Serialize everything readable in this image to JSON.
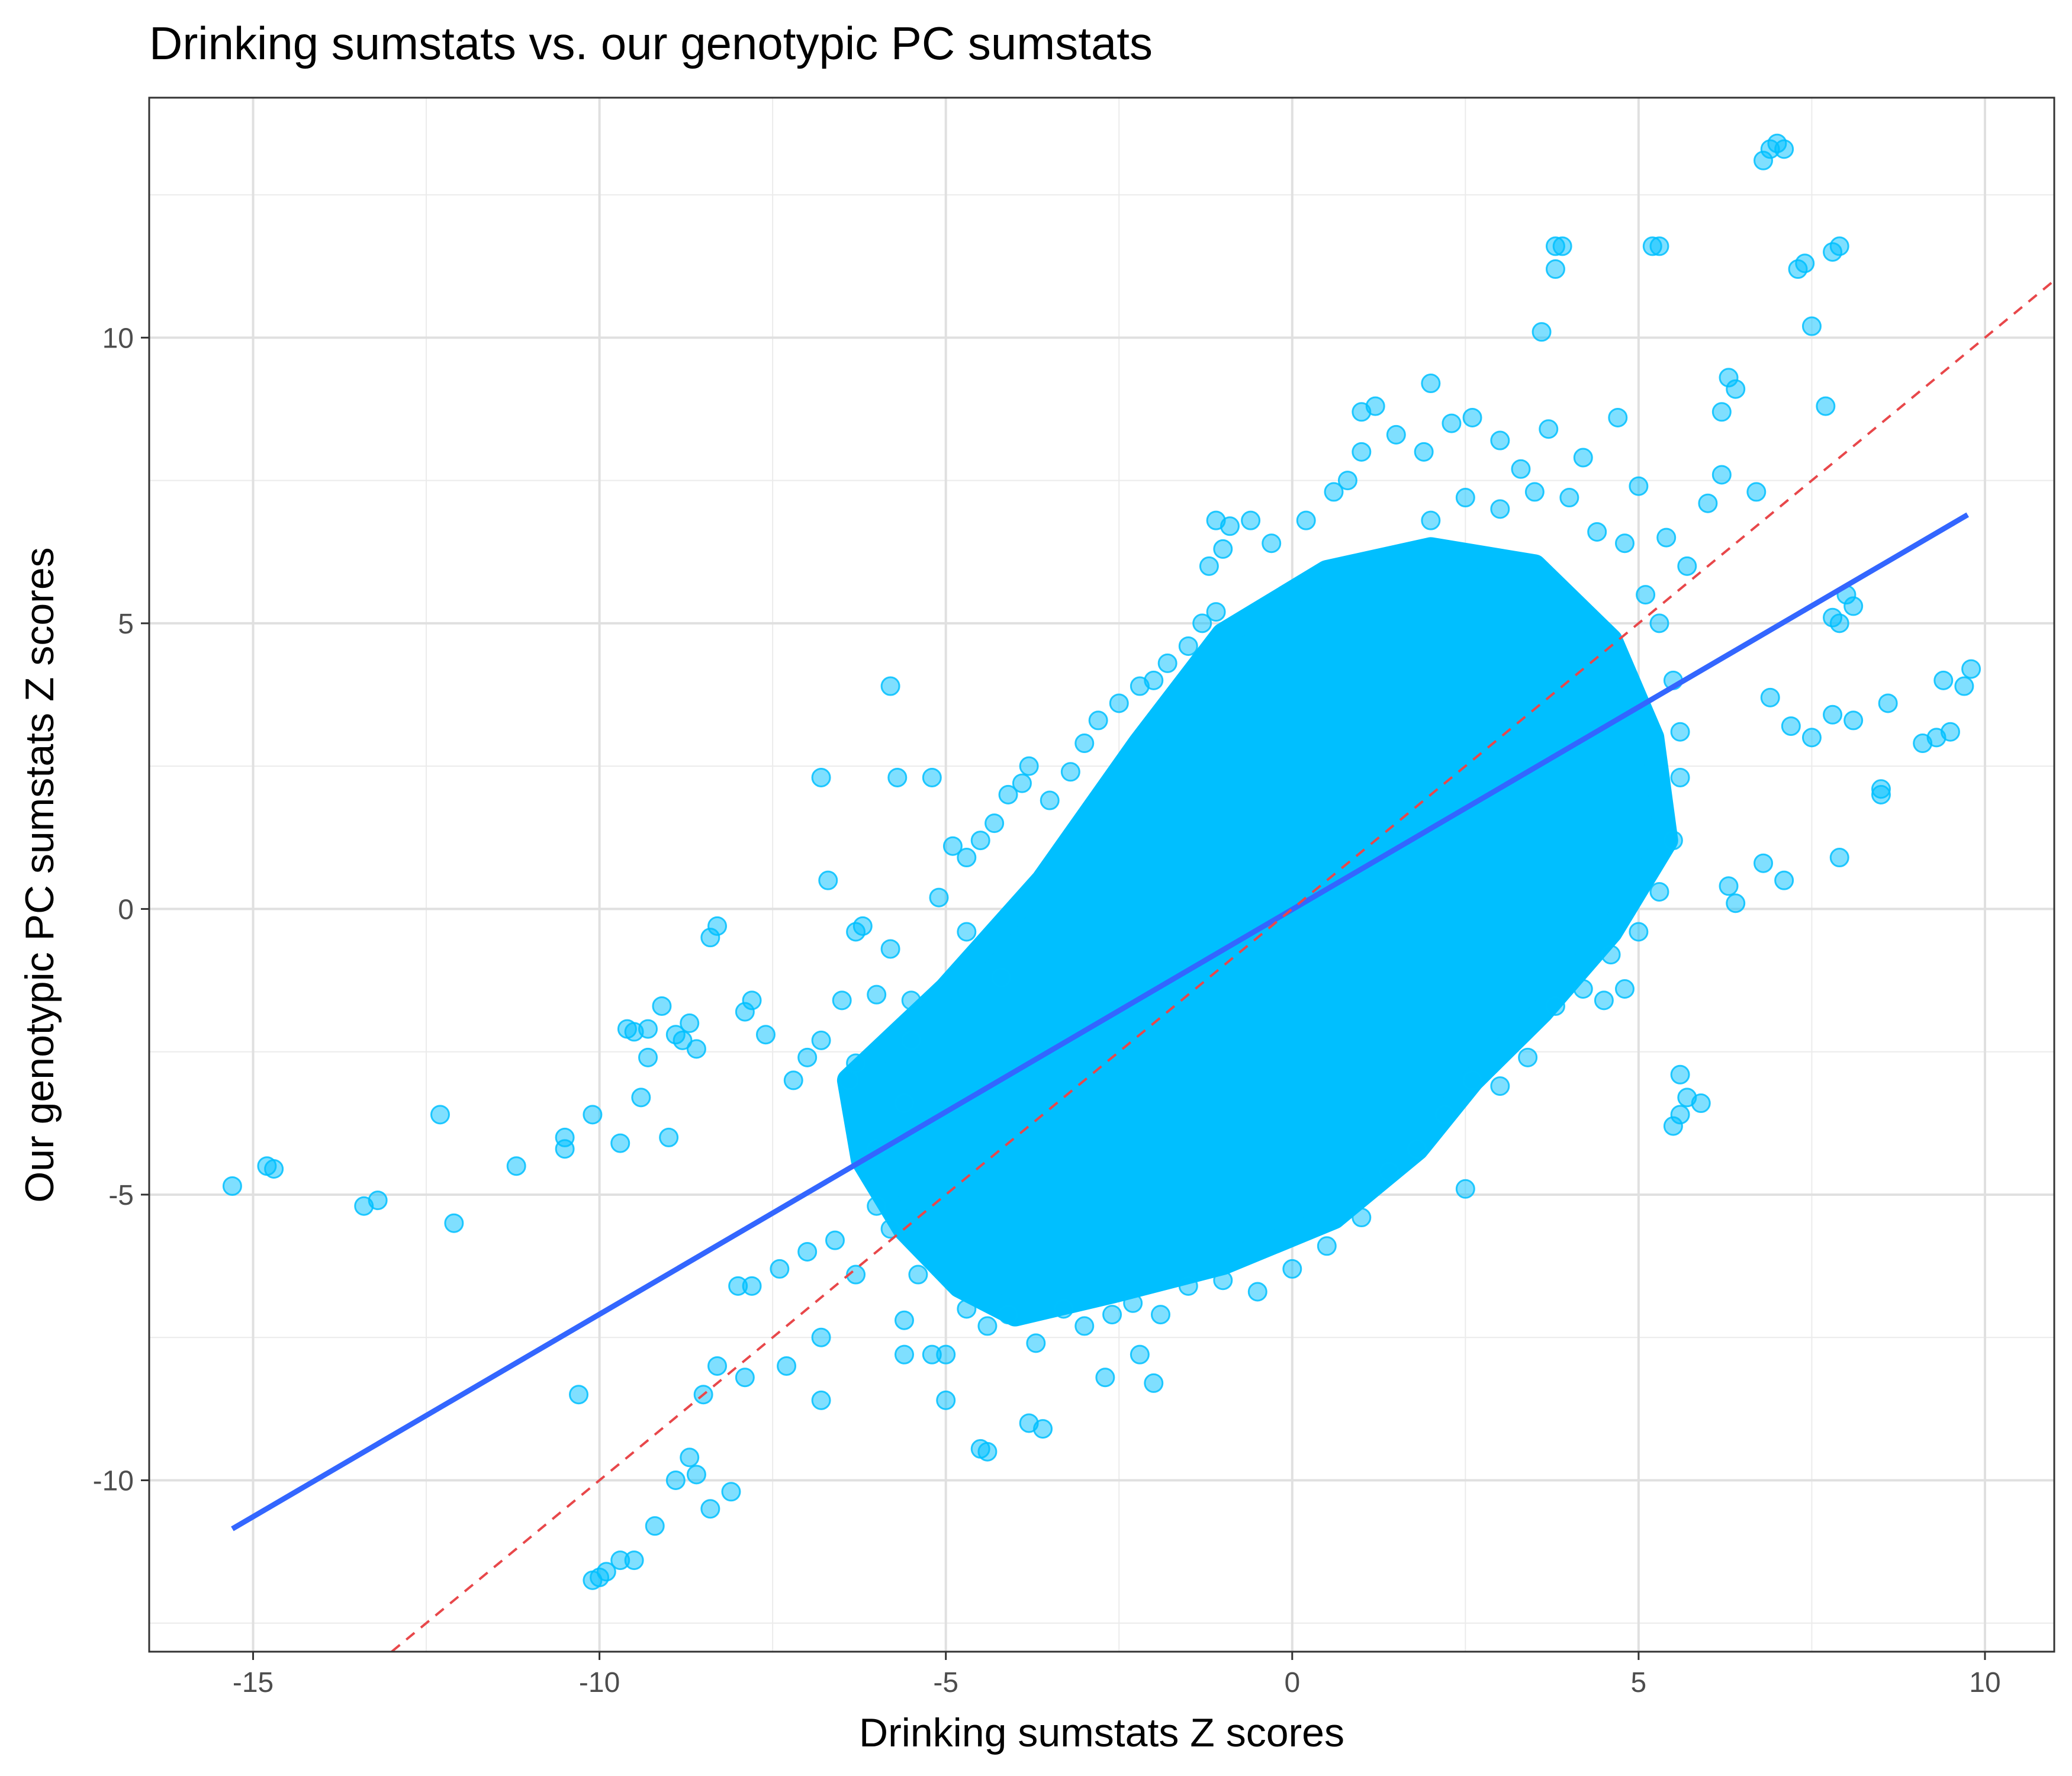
{
  "chart_data": {
    "type": "scatter",
    "title": "Drinking sumstats vs. our genotypic PC sumstats",
    "xlabel": "Drinking sumstats Z scores",
    "ylabel": "Our genotypic PC sumstats Z scores",
    "xlim": [
      -16.5,
      11.0
    ],
    "ylim": [
      -13.0,
      14.2
    ],
    "x_ticks": [
      -15,
      -10,
      -5,
      0,
      5,
      10
    ],
    "y_ticks": [
      -10,
      -5,
      0,
      5,
      10
    ],
    "grid": true,
    "point_color": "#00BFFF",
    "series": [
      {
        "type": "scatter",
        "points": [
          [
            -15.3,
            -4.85
          ],
          [
            -14.8,
            -4.5
          ],
          [
            -14.7,
            -4.55
          ],
          [
            -13.4,
            -5.2
          ],
          [
            -13.2,
            -5.1
          ],
          [
            -12.3,
            -3.6
          ],
          [
            -12.1,
            -5.5
          ],
          [
            -11.2,
            -4.5
          ],
          [
            -10.5,
            -4.0
          ],
          [
            -10.5,
            -4.2
          ],
          [
            -10.1,
            -3.6
          ],
          [
            -10.3,
            -8.5
          ],
          [
            -9.7,
            -4.1
          ],
          [
            -9.6,
            -2.1
          ],
          [
            -9.5,
            -2.15
          ],
          [
            -9.4,
            -3.3
          ],
          [
            -9.3,
            -2.1
          ],
          [
            -9.3,
            -2.6
          ],
          [
            -9.1,
            -1.7
          ],
          [
            -9.0,
            -4.0
          ],
          [
            -8.9,
            -2.2
          ],
          [
            -8.8,
            -2.3
          ],
          [
            -8.7,
            -2.0
          ],
          [
            -8.6,
            -2.45
          ],
          [
            -8.4,
            -0.5
          ],
          [
            -8.3,
            -0.3
          ],
          [
            -7.9,
            -1.8
          ],
          [
            -7.8,
            -1.6
          ],
          [
            -7.6,
            -2.2
          ],
          [
            -7.2,
            -3.0
          ],
          [
            -7.0,
            -2.6
          ],
          [
            -6.8,
            -2.3
          ],
          [
            -6.8,
            2.3
          ],
          [
            -6.7,
            0.5
          ],
          [
            -6.5,
            -1.6
          ],
          [
            -6.4,
            -3.0
          ],
          [
            -6.3,
            -0.4
          ],
          [
            -6.2,
            -0.3
          ],
          [
            -6.0,
            -1.5
          ],
          [
            -5.8,
            -0.7
          ],
          [
            -5.8,
            3.9
          ],
          [
            -5.7,
            2.3
          ],
          [
            -5.5,
            -1.6
          ],
          [
            -5.2,
            2.3
          ],
          [
            -5.1,
            0.2
          ],
          [
            -4.9,
            1.1
          ],
          [
            -4.7,
            0.9
          ],
          [
            -4.5,
            1.2
          ],
          [
            -4.3,
            1.5
          ],
          [
            -4.1,
            2.0
          ],
          [
            -3.9,
            2.2
          ],
          [
            -3.8,
            2.5
          ],
          [
            -3.5,
            1.9
          ],
          [
            -3.2,
            2.4
          ],
          [
            -3.0,
            2.9
          ],
          [
            -2.8,
            3.3
          ],
          [
            -2.5,
            3.6
          ],
          [
            -2.2,
            3.9
          ],
          [
            -2.0,
            4.0
          ],
          [
            -1.8,
            4.3
          ],
          [
            -1.5,
            4.6
          ],
          [
            -1.3,
            5.0
          ],
          [
            -1.1,
            5.2
          ],
          [
            -1.2,
            6.0
          ],
          [
            -1.0,
            6.3
          ],
          [
            -1.1,
            6.8
          ],
          [
            -0.9,
            6.7
          ],
          [
            -0.6,
            6.8
          ],
          [
            -0.3,
            6.4
          ],
          [
            0.2,
            6.8
          ],
          [
            0.6,
            7.3
          ],
          [
            0.8,
            7.5
          ],
          [
            1.0,
            8.0
          ],
          [
            1.0,
            8.7
          ],
          [
            1.2,
            8.8
          ],
          [
            1.5,
            8.3
          ],
          [
            1.9,
            8.0
          ],
          [
            2.0,
            9.2
          ],
          [
            2.3,
            8.5
          ],
          [
            2.6,
            8.6
          ],
          [
            3.0,
            8.2
          ],
          [
            3.3,
            7.7
          ],
          [
            3.7,
            8.4
          ],
          [
            3.8,
            11.6
          ],
          [
            3.9,
            11.6
          ],
          [
            3.8,
            11.2
          ],
          [
            3.6,
            10.1
          ],
          [
            4.2,
            7.9
          ],
          [
            4.7,
            8.6
          ],
          [
            5.2,
            11.6
          ],
          [
            5.3,
            11.6
          ],
          [
            5.0,
            7.4
          ],
          [
            5.4,
            6.5
          ],
          [
            5.7,
            6.0
          ],
          [
            6.0,
            7.1
          ],
          [
            6.2,
            8.7
          ],
          [
            6.3,
            9.3
          ],
          [
            6.4,
            9.1
          ],
          [
            6.2,
            7.6
          ],
          [
            6.7,
            7.3
          ],
          [
            6.9,
            13.3
          ],
          [
            7.0,
            13.4
          ],
          [
            6.8,
            13.1
          ],
          [
            7.1,
            13.3
          ],
          [
            7.4,
            11.3
          ],
          [
            7.5,
            10.2
          ],
          [
            7.3,
            11.2
          ],
          [
            7.8,
            11.5
          ],
          [
            7.9,
            11.6
          ],
          [
            7.7,
            8.8
          ],
          [
            7.8,
            5.1
          ],
          [
            8.0,
            5.5
          ],
          [
            7.9,
            5.0
          ],
          [
            8.1,
            5.3
          ],
          [
            6.9,
            3.7
          ],
          [
            7.2,
            3.2
          ],
          [
            7.5,
            3.0
          ],
          [
            7.8,
            3.4
          ],
          [
            8.1,
            3.3
          ],
          [
            8.6,
            3.6
          ],
          [
            8.5,
            2.1
          ],
          [
            8.5,
            2.0
          ],
          [
            9.1,
            2.9
          ],
          [
            9.3,
            3.0
          ],
          [
            9.4,
            4.0
          ],
          [
            9.7,
            3.9
          ],
          [
            9.8,
            4.2
          ],
          [
            9.5,
            3.1
          ],
          [
            6.3,
            0.4
          ],
          [
            6.4,
            0.1
          ],
          [
            6.8,
            0.8
          ],
          [
            7.1,
            0.5
          ],
          [
            7.9,
            0.9
          ],
          [
            5.6,
            -2.9
          ],
          [
            5.6,
            -3.6
          ],
          [
            5.7,
            -3.3
          ],
          [
            5.9,
            -3.4
          ],
          [
            5.5,
            -3.8
          ],
          [
            2.5,
            -4.9
          ],
          [
            4.5,
            -1.6
          ],
          [
            4.8,
            -1.4
          ],
          [
            -4.4,
            -9.5
          ],
          [
            -4.5,
            -9.45
          ],
          [
            -3.6,
            -9.1
          ],
          [
            -3.8,
            -9.0
          ],
          [
            -2.7,
            -8.2
          ],
          [
            -2.0,
            -8.3
          ],
          [
            -2.2,
            -7.8
          ],
          [
            -5.0,
            -8.6
          ],
          [
            -5.6,
            -7.8
          ],
          [
            -5.2,
            -7.8
          ],
          [
            -6.8,
            -8.6
          ],
          [
            -7.3,
            -8.0
          ],
          [
            -7.9,
            -8.2
          ],
          [
            -8.1,
            -10.2
          ],
          [
            -8.4,
            -10.5
          ],
          [
            -8.6,
            -9.9
          ],
          [
            -8.9,
            -10.0
          ],
          [
            -9.2,
            -10.8
          ],
          [
            -8.7,
            -9.6
          ],
          [
            -9.5,
            -11.4
          ],
          [
            -9.7,
            -11.4
          ],
          [
            -9.9,
            -11.6
          ],
          [
            -10.1,
            -11.75
          ],
          [
            -10.0,
            -11.7
          ],
          [
            -8.5,
            -8.5
          ],
          [
            -8.3,
            -8.0
          ],
          [
            -8.0,
            -6.6
          ],
          [
            -7.8,
            -6.6
          ],
          [
            -7.4,
            -6.3
          ],
          [
            -7.0,
            -6.0
          ],
          [
            -6.8,
            -7.5
          ],
          [
            -6.6,
            -5.8
          ],
          [
            -6.3,
            -6.4
          ],
          [
            -6.0,
            -5.2
          ],
          [
            -5.8,
            -5.6
          ],
          [
            -5.6,
            -7.2
          ],
          [
            -5.4,
            -6.4
          ],
          [
            -5.0,
            -7.8
          ],
          [
            -4.7,
            -7.0
          ],
          [
            -4.4,
            -7.3
          ],
          [
            -4.1,
            -7.1
          ],
          [
            -3.7,
            -7.6
          ],
          [
            -3.3,
            -7.0
          ],
          [
            -3.0,
            -7.3
          ],
          [
            -2.6,
            -7.1
          ],
          [
            -2.3,
            -6.9
          ],
          [
            -1.9,
            -7.1
          ],
          [
            -1.5,
            -6.6
          ],
          [
            -1.0,
            -6.5
          ],
          [
            -0.5,
            -6.7
          ],
          [
            0.0,
            -6.3
          ],
          [
            0.5,
            -5.9
          ],
          [
            1.0,
            -5.4
          ],
          [
            1.4,
            -4.6
          ],
          [
            1.8,
            -4.2
          ],
          [
            2.2,
            -3.6
          ],
          [
            2.6,
            -3.0
          ],
          [
            3.0,
            -3.1
          ],
          [
            3.4,
            -2.6
          ],
          [
            3.8,
            -1.7
          ],
          [
            4.2,
            -1.4
          ],
          [
            4.6,
            -0.8
          ],
          [
            5.0,
            -0.4
          ],
          [
            5.3,
            0.3
          ],
          [
            5.5,
            1.2
          ],
          [
            5.6,
            2.3
          ],
          [
            5.6,
            3.1
          ],
          [
            5.5,
            4.0
          ],
          [
            5.3,
            5.0
          ],
          [
            5.1,
            5.5
          ],
          [
            4.8,
            6.4
          ],
          [
            4.4,
            6.6
          ],
          [
            4.0,
            7.2
          ],
          [
            3.5,
            7.3
          ],
          [
            3.0,
            7.0
          ],
          [
            2.5,
            7.2
          ],
          [
            2.0,
            6.8
          ],
          [
            -4.7,
            -0.4
          ],
          [
            -4.2,
            -1.2
          ],
          [
            -5.5,
            -2.3
          ],
          [
            -6.3,
            -2.7
          ],
          [
            -6.0,
            -4.2
          ],
          [
            -5.6,
            -3.4
          ]
        ]
      },
      {
        "type": "cloud",
        "points": [
          [
            -6.4,
            -3.0
          ],
          [
            -5.0,
            -1.4
          ],
          [
            -3.6,
            0.5
          ],
          [
            -2.2,
            2.9
          ],
          [
            -1.0,
            4.8
          ],
          [
            0.5,
            5.9
          ],
          [
            2.0,
            6.3
          ],
          [
            3.5,
            6.0
          ],
          [
            4.6,
            4.7
          ],
          [
            5.2,
            3.0
          ],
          [
            5.4,
            1.2
          ],
          [
            4.6,
            -0.4
          ],
          [
            3.6,
            -1.8
          ],
          [
            2.6,
            -3.0
          ],
          [
            1.8,
            -4.2
          ],
          [
            0.6,
            -5.4
          ],
          [
            -1.0,
            -6.2
          ],
          [
            -2.6,
            -6.7
          ],
          [
            -4.0,
            -7.1
          ],
          [
            -4.8,
            -6.6
          ],
          [
            -5.6,
            -5.6
          ],
          [
            -6.2,
            -4.4
          ]
        ]
      },
      {
        "type": "line",
        "name": "regression",
        "color": "#3366FF",
        "points": [
          [
            -15.3,
            -10.85
          ],
          [
            9.75,
            6.9
          ]
        ]
      },
      {
        "type": "line",
        "name": "identity",
        "color": "#E8474A",
        "dashed": true,
        "points": [
          [
            -13.0,
            -13.0
          ],
          [
            11.0,
            11.0
          ]
        ]
      }
    ]
  }
}
